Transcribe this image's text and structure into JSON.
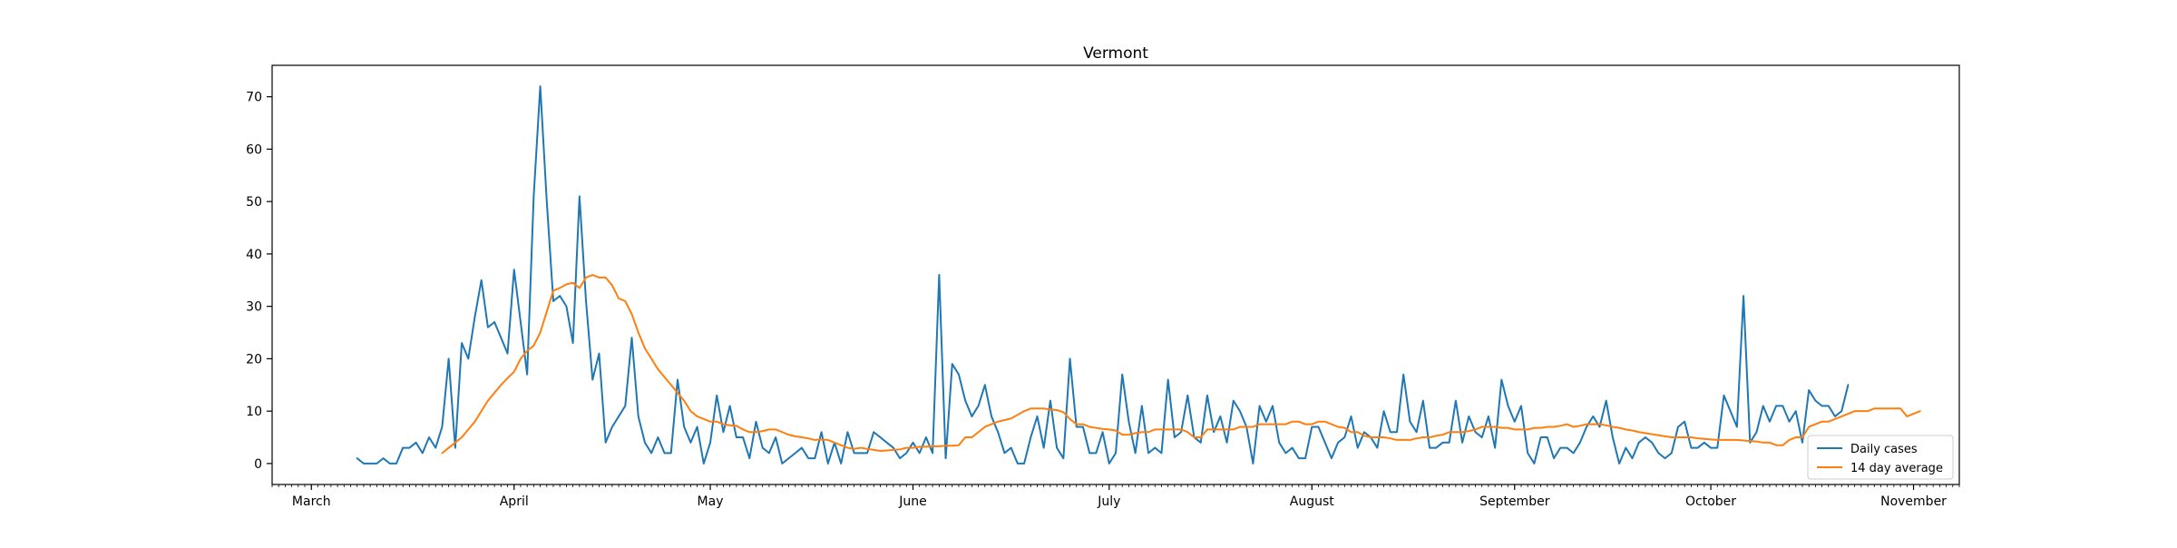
{
  "chart_data": {
    "type": "line",
    "title": "Vermont",
    "xlabel": "",
    "ylabel": "",
    "x_start": "2020-03-01",
    "xlim": [
      "2020-02-24",
      "2020-11-08"
    ],
    "ylim": [
      -4,
      76
    ],
    "yticks": [
      0,
      10,
      20,
      30,
      40,
      50,
      60,
      70
    ],
    "xticks": [
      {
        "label": "March",
        "date": "2020-03-01"
      },
      {
        "label": "April",
        "date": "2020-04-01"
      },
      {
        "label": "May",
        "date": "2020-05-01"
      },
      {
        "label": "June",
        "date": "2020-06-01"
      },
      {
        "label": "July",
        "date": "2020-07-01"
      },
      {
        "label": "August",
        "date": "2020-08-01"
      },
      {
        "label": "September",
        "date": "2020-09-01"
      },
      {
        "label": "October",
        "date": "2020-10-01"
      },
      {
        "label": "November",
        "date": "2020-11-01"
      }
    ],
    "grid": false,
    "legend_position": "lower-right",
    "series": [
      {
        "name": "Daily cases",
        "color": "#1f77b4",
        "start_date": "2020-03-08",
        "values": [
          1,
          0,
          0,
          0,
          1,
          0,
          0,
          3,
          3,
          4,
          2,
          5,
          3,
          7,
          20,
          3,
          23,
          20,
          28,
          35,
          26,
          27,
          24,
          21,
          37,
          27,
          17,
          51,
          72,
          50,
          31,
          32,
          30,
          23,
          51,
          31,
          16,
          21,
          4,
          7,
          9,
          11,
          24,
          9,
          4,
          2,
          5,
          2,
          2,
          16,
          7,
          4,
          7,
          0,
          4,
          13,
          6,
          11,
          5,
          5,
          1,
          8,
          3,
          2,
          5,
          0,
          1,
          2,
          3,
          1,
          1,
          6,
          0,
          4,
          0,
          6,
          2,
          2,
          2,
          6,
          5,
          4,
          3,
          1,
          2,
          4,
          2,
          5,
          2,
          36,
          1,
          19,
          17,
          12,
          9,
          11,
          15,
          9,
          6,
          2,
          3,
          0,
          0,
          5,
          9,
          3,
          12,
          3,
          1,
          20,
          7,
          7,
          2,
          2,
          6,
          0,
          2,
          17,
          8,
          2,
          11,
          2,
          3,
          2,
          16,
          5,
          6,
          13,
          5,
          4,
          13,
          6,
          9,
          4,
          12,
          10,
          7,
          0,
          11,
          8,
          11,
          4,
          2,
          3,
          1,
          1,
          7,
          7,
          4,
          1,
          4,
          5,
          9,
          3,
          6,
          5,
          3,
          10,
          6,
          6,
          17,
          8,
          6,
          12,
          3,
          3,
          4,
          4,
          12,
          4,
          9,
          6,
          5,
          9,
          3,
          16,
          11,
          8,
          11,
          2,
          0,
          5,
          5,
          1,
          3,
          3,
          2,
          4,
          7,
          9,
          7,
          12,
          5,
          0,
          3,
          1,
          4,
          5,
          4,
          2,
          1,
          2,
          7,
          8,
          3,
          3,
          4,
          3,
          3,
          13,
          10,
          7,
          32,
          4,
          6,
          11,
          8,
          11,
          11,
          8,
          10,
          4,
          14,
          12,
          11,
          11,
          9,
          10,
          15
        ]
      },
      {
        "name": "14 day average",
        "color": "#ff7f0e",
        "start_date": "2020-03-21",
        "values": [
          2,
          3,
          4,
          5,
          6.5,
          8,
          10,
          12,
          13.5,
          15,
          16.3,
          17.5,
          20,
          21.5,
          22.5,
          25,
          29,
          33,
          33.5,
          34.2,
          34.5,
          33.5,
          35.5,
          36,
          35.5,
          35.5,
          34,
          31.5,
          31,
          28.5,
          25,
          22,
          20,
          18,
          16.5,
          15,
          13.5,
          12,
          10,
          9,
          8.5,
          8,
          8,
          7.5,
          7.3,
          7.2,
          6.5,
          6,
          6,
          6.2,
          6.5,
          6.5,
          6,
          5.5,
          5.2,
          5,
          4.8,
          4.5,
          4.6,
          4.5,
          4,
          3.5,
          3,
          2.8,
          3,
          2.8,
          2.6,
          2.4,
          2.5,
          2.6,
          2.7,
          3,
          3,
          3.2,
          3.2,
          3.3,
          3.3,
          3.4,
          3.4,
          3.5,
          5,
          5,
          6,
          7,
          7.5,
          8,
          8.3,
          8.6,
          9.3,
          10,
          10.5,
          10.5,
          10.5,
          10.3,
          10.2,
          9.8,
          8.5,
          7.5,
          7.5,
          7,
          6.8,
          6.6,
          6.5,
          6.3,
          5.5,
          5.5,
          5.8,
          6,
          6,
          6.5,
          6.5,
          6.5,
          6.5,
          6.5,
          6,
          5,
          5,
          6.5,
          6.5,
          6.5,
          6.5,
          6.5,
          7,
          7,
          7,
          7.5,
          7.5,
          7.5,
          7.5,
          7.5,
          8,
          8,
          7.5,
          7.5,
          8,
          8,
          7.5,
          7,
          6.8,
          6,
          6,
          5.3,
          5,
          5,
          5,
          4.8,
          4.5,
          4.5,
          4.5,
          4.8,
          5,
          5,
          5.3,
          5.5,
          6,
          6,
          6,
          6.2,
          6.5,
          7,
          7,
          7,
          6.8,
          6.8,
          6.5,
          6.5,
          6.5,
          6.8,
          6.8,
          7,
          7,
          7.2,
          7.5,
          7,
          7.2,
          7.5,
          7.5,
          7.5,
          7.3,
          7,
          6.8,
          6.5,
          6.3,
          6,
          5.8,
          5.6,
          5.4,
          5.2,
          5,
          5,
          5,
          5,
          4.8,
          4.7,
          4.6,
          4.5,
          4.5,
          4.5,
          4.5,
          4.4,
          4.3,
          4.2,
          4,
          4,
          3.5,
          3.5,
          4.5,
          5,
          5,
          7,
          7.5,
          8,
          8,
          8.5,
          9,
          9.5,
          10,
          10,
          10,
          10.5,
          10.5,
          10.5,
          10.5,
          10.5,
          9,
          9.5,
          10
        ]
      }
    ]
  }
}
